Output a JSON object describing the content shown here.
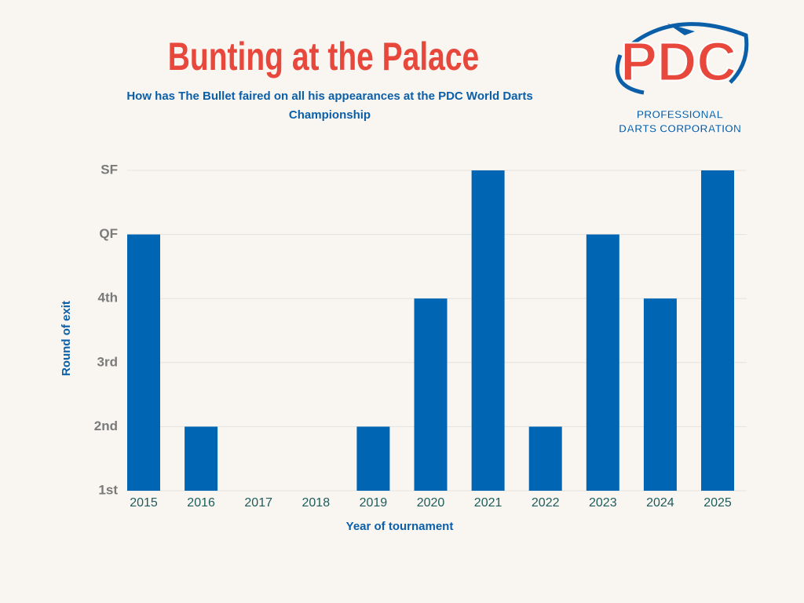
{
  "chart_data": {
    "type": "bar",
    "title": "Bunting at the Palace",
    "subtitle": "How has The Bullet faired on all his appearances at the PDC World Darts Championship",
    "x_label": "Year of tournament",
    "y_label": "Round of exit",
    "categories": [
      "2015",
      "2016",
      "2017",
      "2018",
      "2019",
      "2020",
      "2021",
      "2022",
      "2023",
      "2024",
      "2025"
    ],
    "values": [
      5,
      2,
      1,
      1,
      2,
      4,
      6,
      2,
      5,
      4,
      6
    ],
    "color": "#0066b3",
    "ylim": [
      1,
      6
    ],
    "yticks": [
      {
        "value": 1,
        "label": "1st"
      },
      {
        "value": 2,
        "label": "2nd"
      },
      {
        "value": 3,
        "label": "3rd"
      },
      {
        "value": 4,
        "label": "4th"
      },
      {
        "value": 5,
        "label": "QF"
      },
      {
        "value": 6,
        "label": "SF"
      }
    ],
    "grid": true
  },
  "logo": {
    "name": "PDC",
    "line1": "PROFESSIONAL",
    "line2": "DARTS CORPORATION"
  }
}
